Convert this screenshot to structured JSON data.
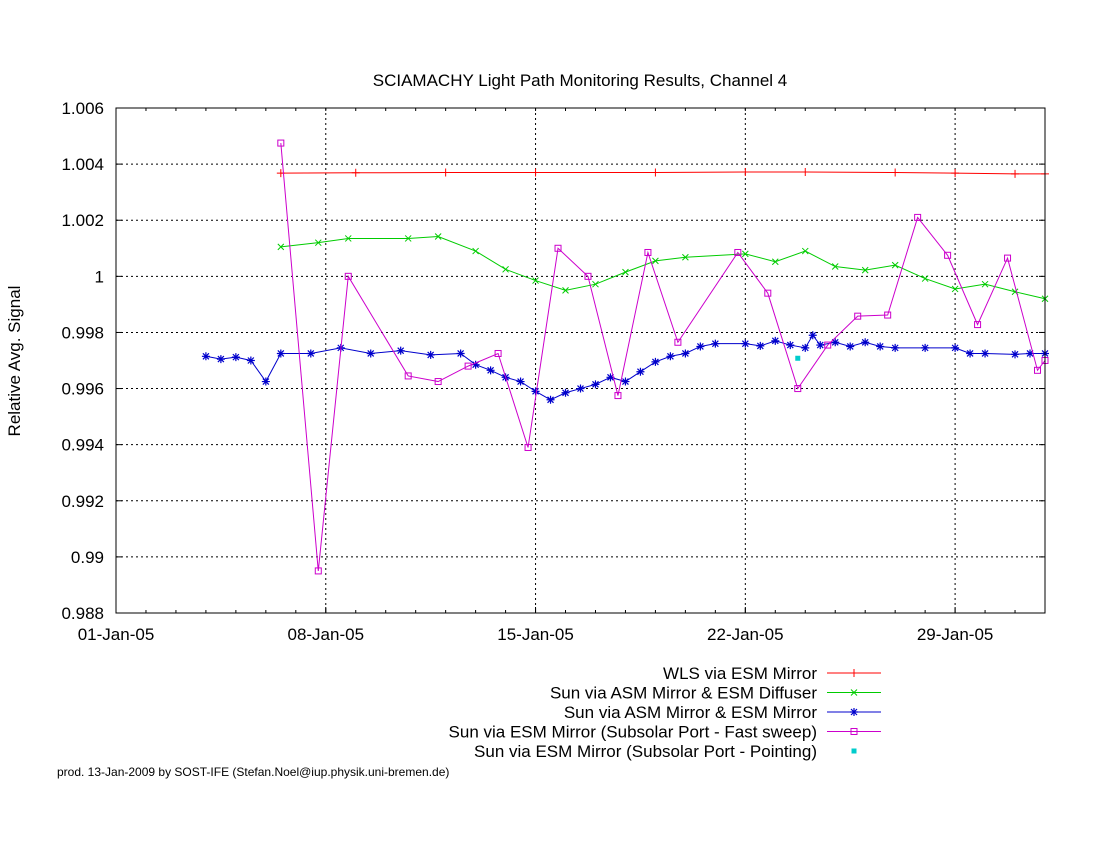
{
  "chart_data": {
    "type": "line",
    "title": "SCIAMACHY Light Path Monitoring Results, Channel 4",
    "xlabel": "",
    "ylabel": "Relative Avg. Signal",
    "x_axis_type": "date",
    "xlim": [
      "2005-01-01",
      "2005-02-01"
    ],
    "ylim": [
      0.988,
      1.006
    ],
    "x_ticks": [
      "2005-01-01",
      "2005-01-08",
      "2005-01-15",
      "2005-01-22",
      "2005-01-29"
    ],
    "x_tick_labels": [
      "01-Jan-05",
      "08-Jan-05",
      "15-Jan-05",
      "22-Jan-05",
      "29-Jan-05"
    ],
    "y_ticks": [
      0.988,
      0.99,
      0.992,
      0.994,
      0.996,
      0.998,
      1,
      1.002,
      1.004,
      1.006
    ],
    "y_tick_labels": [
      "0.988",
      "0.99",
      "0.992",
      "0.994",
      "0.996",
      "0.998",
      "1",
      "1.002",
      "1.004",
      "1.006"
    ],
    "grid": true,
    "legend_position": "bottom-right",
    "series": [
      {
        "name": "WLS via ESM Mirror",
        "color": "#ff0000",
        "marker": "plus",
        "points": [
          [
            "2005-01-06T12:00",
            1.00368
          ],
          [
            "2005-01-09T00:00",
            1.00369
          ],
          [
            "2005-01-12T00:00",
            1.0037
          ],
          [
            "2005-01-15T00:00",
            1.0037
          ],
          [
            "2005-01-19T00:00",
            1.0037
          ],
          [
            "2005-01-22T00:00",
            1.00372
          ],
          [
            "2005-01-24T00:00",
            1.00372
          ],
          [
            "2005-01-27T00:00",
            1.0037
          ],
          [
            "2005-01-29T00:00",
            1.00368
          ],
          [
            "2005-01-31T00:00",
            1.00365
          ],
          [
            "2005-02-01T00:00",
            1.00365
          ]
        ]
      },
      {
        "name": "Sun via ASM Mirror & ESM Diffuser",
        "color": "#00cc00",
        "marker": "cross",
        "points": [
          [
            "2005-01-06T12:00",
            1.00105
          ],
          [
            "2005-01-07T18:00",
            1.0012
          ],
          [
            "2005-01-08T18:00",
            1.00135
          ],
          [
            "2005-01-10T18:00",
            1.00135
          ],
          [
            "2005-01-11T18:00",
            1.00142
          ],
          [
            "2005-01-13T00:00",
            1.0009
          ],
          [
            "2005-01-14T00:00",
            1.00025
          ],
          [
            "2005-01-15T00:00",
            0.99985
          ],
          [
            "2005-01-16T00:00",
            0.9995
          ],
          [
            "2005-01-17T00:00",
            0.99972
          ],
          [
            "2005-01-18T00:00",
            1.00015
          ],
          [
            "2005-01-19T00:00",
            1.00055
          ],
          [
            "2005-01-20T00:00",
            1.00068
          ],
          [
            "2005-01-22T00:00",
            1.0008
          ],
          [
            "2005-01-23T00:00",
            1.00052
          ],
          [
            "2005-01-24T00:00",
            1.0009
          ],
          [
            "2005-01-25T00:00",
            1.00035
          ],
          [
            "2005-01-26T00:00",
            1.00022
          ],
          [
            "2005-01-27T00:00",
            1.0004
          ],
          [
            "2005-01-28T00:00",
            0.99992
          ],
          [
            "2005-01-29T00:00",
            0.99955
          ],
          [
            "2005-01-30T00:00",
            0.99972
          ],
          [
            "2005-01-31T00:00",
            0.99945
          ],
          [
            "2005-02-01T00:00",
            0.9992
          ]
        ]
      },
      {
        "name": "Sun via ASM Mirror & ESM Mirror",
        "color": "#0000cc",
        "marker": "star",
        "points": [
          [
            "2005-01-04T00:00",
            0.99715
          ],
          [
            "2005-01-04T12:00",
            0.99705
          ],
          [
            "2005-01-05T00:00",
            0.99712
          ],
          [
            "2005-01-05T12:00",
            0.997
          ],
          [
            "2005-01-06T00:00",
            0.99625
          ],
          [
            "2005-01-06T12:00",
            0.99725
          ],
          [
            "2005-01-07T12:00",
            0.99725
          ],
          [
            "2005-01-08T12:00",
            0.99745
          ],
          [
            "2005-01-09T12:00",
            0.99725
          ],
          [
            "2005-01-10T12:00",
            0.99735
          ],
          [
            "2005-01-11T12:00",
            0.9972
          ],
          [
            "2005-01-12T12:00",
            0.99725
          ],
          [
            "2005-01-13T00:00",
            0.99685
          ],
          [
            "2005-01-13T12:00",
            0.99665
          ],
          [
            "2005-01-14T00:00",
            0.9964
          ],
          [
            "2005-01-14T12:00",
            0.99625
          ],
          [
            "2005-01-15T00:00",
            0.9959
          ],
          [
            "2005-01-15T12:00",
            0.9956
          ],
          [
            "2005-01-16T00:00",
            0.99585
          ],
          [
            "2005-01-16T12:00",
            0.996
          ],
          [
            "2005-01-17T00:00",
            0.99615
          ],
          [
            "2005-01-17T12:00",
            0.9964
          ],
          [
            "2005-01-18T00:00",
            0.99625
          ],
          [
            "2005-01-18T12:00",
            0.9966
          ],
          [
            "2005-01-19T00:00",
            0.99695
          ],
          [
            "2005-01-19T12:00",
            0.99715
          ],
          [
            "2005-01-20T00:00",
            0.99725
          ],
          [
            "2005-01-20T12:00",
            0.9975
          ],
          [
            "2005-01-21T00:00",
            0.9976
          ],
          [
            "2005-01-22T00:00",
            0.9976
          ],
          [
            "2005-01-22T12:00",
            0.99752
          ],
          [
            "2005-01-23T00:00",
            0.9977
          ],
          [
            "2005-01-23T12:00",
            0.99755
          ],
          [
            "2005-01-24T00:00",
            0.99745
          ],
          [
            "2005-01-24T06:00",
            0.9979
          ],
          [
            "2005-01-24T12:00",
            0.99755
          ],
          [
            "2005-01-25T00:00",
            0.99765
          ],
          [
            "2005-01-25T12:00",
            0.9975
          ],
          [
            "2005-01-26T00:00",
            0.99765
          ],
          [
            "2005-01-26T12:00",
            0.9975
          ],
          [
            "2005-01-27T00:00",
            0.99745
          ],
          [
            "2005-01-28T00:00",
            0.99745
          ],
          [
            "2005-01-29T00:00",
            0.99745
          ],
          [
            "2005-01-29T12:00",
            0.99725
          ],
          [
            "2005-01-30T00:00",
            0.99725
          ],
          [
            "2005-01-31T00:00",
            0.99722
          ],
          [
            "2005-01-31T12:00",
            0.99725
          ],
          [
            "2005-02-01T00:00",
            0.99725
          ]
        ]
      },
      {
        "name": "Sun via ESM Mirror (Subsolar Port - Fast sweep)",
        "color": "#cc00cc",
        "marker": "square",
        "points": [
          [
            "2005-01-06T12:00",
            1.00475
          ],
          [
            "2005-01-07T18:00",
            0.9895
          ],
          [
            "2005-01-08T18:00",
            1.0
          ],
          [
            "2005-01-10T18:00",
            0.99645
          ],
          [
            "2005-01-11T18:00",
            0.99625
          ],
          [
            "2005-01-12T18:00",
            0.9968
          ],
          [
            "2005-01-13T18:00",
            0.99725
          ],
          [
            "2005-01-14T18:00",
            0.9939
          ],
          [
            "2005-01-15T18:00",
            1.001
          ],
          [
            "2005-01-16T18:00",
            1.0
          ],
          [
            "2005-01-17T18:00",
            0.99575
          ],
          [
            "2005-01-18T18:00",
            1.00085
          ],
          [
            "2005-01-19T18:00",
            0.99765
          ],
          [
            "2005-01-21T18:00",
            1.00085
          ],
          [
            "2005-01-22T18:00",
            0.9994
          ],
          [
            "2005-01-23T18:00",
            0.996
          ],
          [
            "2005-01-24T18:00",
            0.99755
          ],
          [
            "2005-01-25T18:00",
            0.99858
          ],
          [
            "2005-01-26T18:00",
            0.99862
          ],
          [
            "2005-01-27T18:00",
            1.0021
          ],
          [
            "2005-01-28T18:00",
            1.00075
          ],
          [
            "2005-01-29T18:00",
            0.99828
          ],
          [
            "2005-01-30T18:00",
            1.00065
          ],
          [
            "2005-01-31T18:00",
            0.99665
          ],
          [
            "2005-02-01T00:00",
            0.997
          ]
        ]
      },
      {
        "name": "Sun via ESM Mirror (Subsolar Port - Pointing)",
        "color": "#00cccc",
        "marker": "dot",
        "points": [
          [
            "2005-01-23T18:00",
            0.99708
          ]
        ]
      }
    ]
  },
  "footer": {
    "text": "prod. 13-Jan-2009 by SOST-IFE (Stefan.Noel@iup.physik.uni-bremen.de)"
  }
}
